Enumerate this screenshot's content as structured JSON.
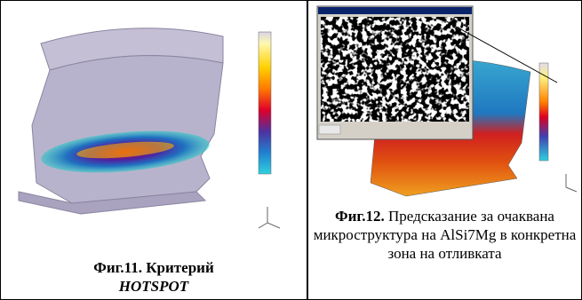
{
  "figures": [
    {
      "caption_label": "Фиг.11.",
      "caption_text": "Критерий",
      "caption_emph": "HOTSPOT"
    },
    {
      "caption_label": "Фиг.12.",
      "caption_text": "Предсказание за очаквана микроструктура на AlSi7Mg в конкретна зона на отливката"
    }
  ]
}
